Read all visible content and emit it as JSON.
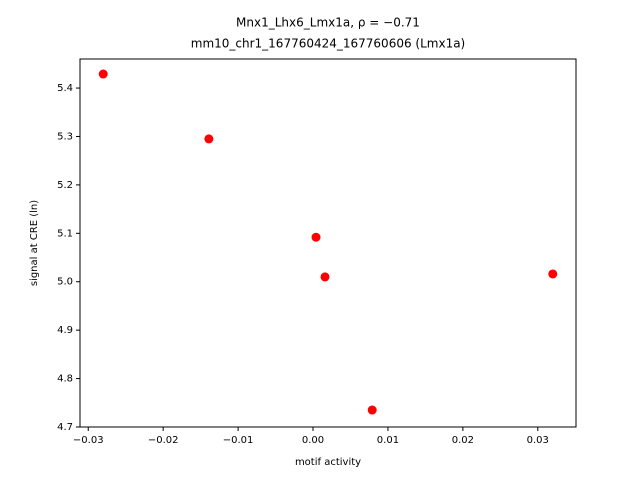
{
  "chart_data": {
    "type": "scatter",
    "title": "Mnx1_Lhx6_Lmx1a, ρ = −0.71",
    "subtitle": "mm10_chr1_167760424_167760606 (Lmx1a)",
    "x_label": "motif activity",
    "y_label": "signal at CRE (ln)",
    "color": "#ff0000",
    "x": [
      -0.028,
      -0.0139,
      0.0004,
      0.0016,
      0.032,
      0.0079
    ],
    "values": [
      5.429,
      5.295,
      5.092,
      5.01,
      5.016,
      4.735
    ],
    "xlim": [
      -0.0311,
      0.0351
    ],
    "ylim": [
      4.7,
      5.46
    ],
    "xticks": [
      {
        "value": -0.03,
        "label": "−0.03"
      },
      {
        "value": -0.02,
        "label": "−0.02"
      },
      {
        "value": -0.01,
        "label": "−0.01"
      },
      {
        "value": 0,
        "label": "0.00"
      },
      0.01,
      0.02,
      0.03
    ],
    "yticks": [
      4.7,
      4.8,
      4.9,
      {
        "value": 5,
        "label": "5.0"
      },
      5.1,
      5.2,
      5.3,
      5.4
    ]
  }
}
